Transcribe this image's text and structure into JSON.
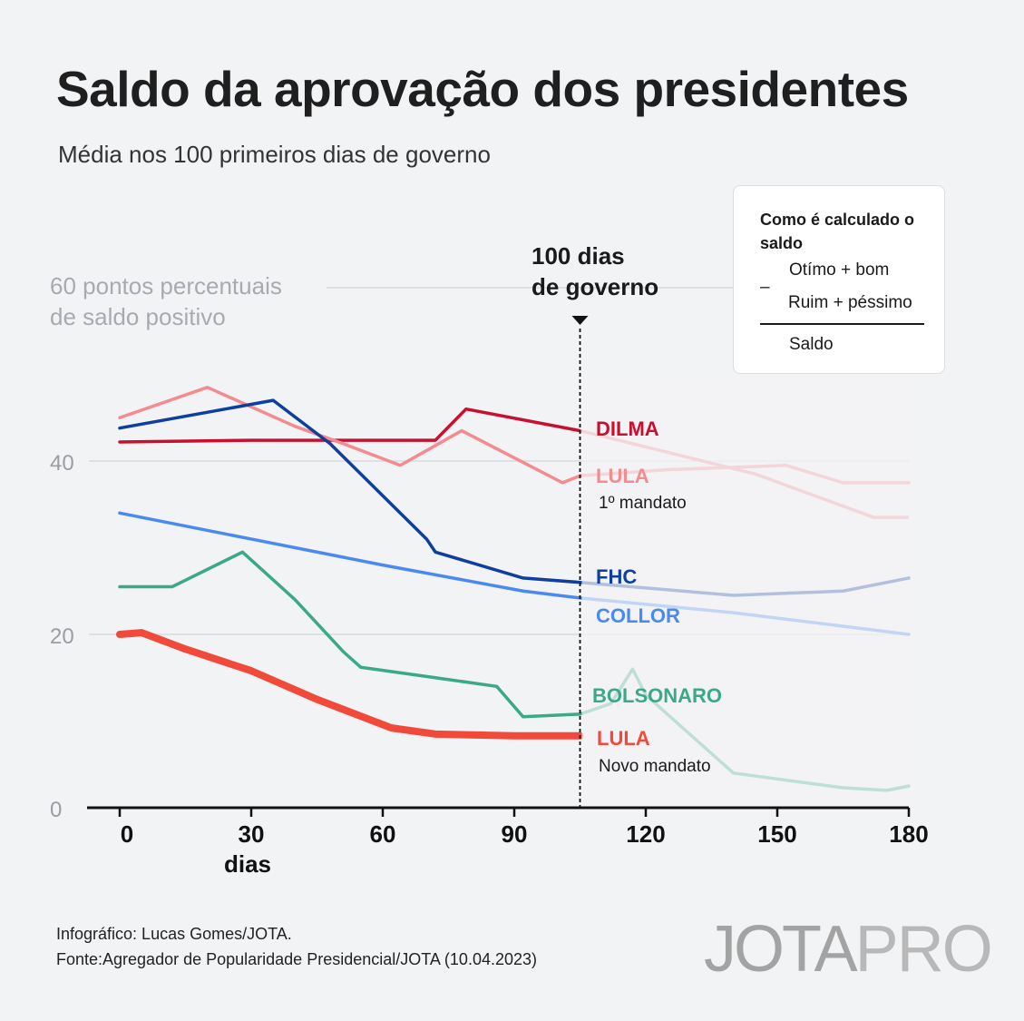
{
  "title": "Saldo da aprovação dos presidentes",
  "subtitle": "Média nos 100 primeiros dias de governo",
  "legend_box": {
    "title": "Como é calculado o saldo",
    "line1": "Otímo + bom",
    "minus": "–",
    "line2": "Ruim + péssimo",
    "line3": "Saldo"
  },
  "annotation": {
    "gridlabel_60": [
      "60 pontos percentuais",
      "de saldo positivo"
    ],
    "marker_label": [
      "100 dias",
      "de governo"
    ],
    "marker_x": 105
  },
  "footer": {
    "credit": "Infográfico: Lucas Gomes/JOTA.",
    "source": "Fonte:Agregador de Popularidade Presidencial/JOTA (10.04.2023)"
  },
  "logo": {
    "part1": "JOTA",
    "part2": "PRO"
  },
  "colors": {
    "dilma": "#c8102e",
    "lula1": "#f48b8f",
    "fhc": "#0e3f9e",
    "collor": "#4a8af0",
    "bolsonaro": "#3aa985",
    "lula_novo": "#f24a3a",
    "grid": "#d6d9de",
    "axis": "#111111"
  },
  "chart_data": {
    "type": "line",
    "title": "Saldo da aprovação dos presidentes",
    "subtitle": "Média nos 100 primeiros dias de governo",
    "xlabel": "dias",
    "ylabel": "",
    "xlim": [
      -7,
      180
    ],
    "ylim": [
      0,
      60
    ],
    "x_ticks": [
      0,
      30,
      60,
      90,
      120,
      150,
      180
    ],
    "y_ticks": [
      0,
      20,
      40
    ],
    "grid": true,
    "series": [
      {
        "name": "DILMA",
        "key": "dilma",
        "label_lines": [
          "DILMA"
        ],
        "points": [
          [
            0,
            42.2
          ],
          [
            30,
            42.4
          ],
          [
            50,
            42.4
          ],
          [
            72,
            42.4
          ],
          [
            79,
            46
          ],
          [
            105,
            43.5
          ]
        ]
      },
      {
        "name": "LULA",
        "key": "lula1",
        "label_lines": [
          "LULA",
          "1º mandato"
        ],
        "points": [
          [
            0,
            45
          ],
          [
            20,
            48.5
          ],
          [
            40,
            44
          ],
          [
            51,
            42
          ],
          [
            64,
            39.5
          ],
          [
            78,
            43.5
          ],
          [
            101,
            37.5
          ],
          [
            105,
            38.3
          ],
          [
            125,
            39
          ],
          [
            152,
            39.5
          ],
          [
            165,
            37.5
          ],
          [
            180,
            37.5
          ]
        ],
        "continuation_alt": [
          [
            105,
            43.5
          ],
          [
            145,
            38.5
          ],
          [
            172,
            33.5
          ],
          [
            180,
            33.5
          ]
        ]
      },
      {
        "name": "FHC",
        "key": "fhc",
        "label_lines": [
          "FHC"
        ],
        "points": [
          [
            0,
            43.8
          ],
          [
            35,
            47
          ],
          [
            48,
            42
          ],
          [
            60,
            36
          ],
          [
            70,
            31
          ],
          [
            72,
            29.5
          ],
          [
            92,
            26.5
          ],
          [
            105,
            26
          ],
          [
            140,
            24.5
          ],
          [
            165,
            25
          ],
          [
            180,
            26.5
          ]
        ]
      },
      {
        "name": "COLLOR",
        "key": "collor",
        "label_lines": [
          "COLLOR"
        ],
        "points": [
          [
            0,
            34
          ],
          [
            30,
            31
          ],
          [
            60,
            28
          ],
          [
            92,
            25
          ],
          [
            105,
            24.2
          ],
          [
            140,
            22.5
          ],
          [
            180,
            20
          ]
        ]
      },
      {
        "name": "BOLSONARO",
        "key": "bolsonaro",
        "label_lines": [
          "BOLSONARO"
        ],
        "points": [
          [
            0,
            25.5
          ],
          [
            12,
            25.5
          ],
          [
            28,
            29.5
          ],
          [
            40,
            24
          ],
          [
            51,
            18
          ],
          [
            55,
            16.2
          ],
          [
            72,
            15
          ],
          [
            86,
            14
          ],
          [
            92,
            10.5
          ],
          [
            105,
            10.8
          ],
          [
            112,
            12
          ],
          [
            117,
            16
          ],
          [
            120,
            13
          ],
          [
            140,
            4
          ],
          [
            165,
            2.3
          ],
          [
            175,
            2
          ],
          [
            180,
            2.5
          ]
        ]
      },
      {
        "name": "LULA",
        "key": "lula_novo",
        "label_lines": [
          "LULA",
          "Novo mandato"
        ],
        "points": [
          [
            0,
            20
          ],
          [
            5,
            20.2
          ],
          [
            15,
            18.3
          ],
          [
            30,
            15.8
          ],
          [
            45,
            12.5
          ],
          [
            62,
            9.2
          ],
          [
            72,
            8.5
          ],
          [
            90,
            8.3
          ],
          [
            105,
            8.3
          ]
        ]
      }
    ]
  }
}
